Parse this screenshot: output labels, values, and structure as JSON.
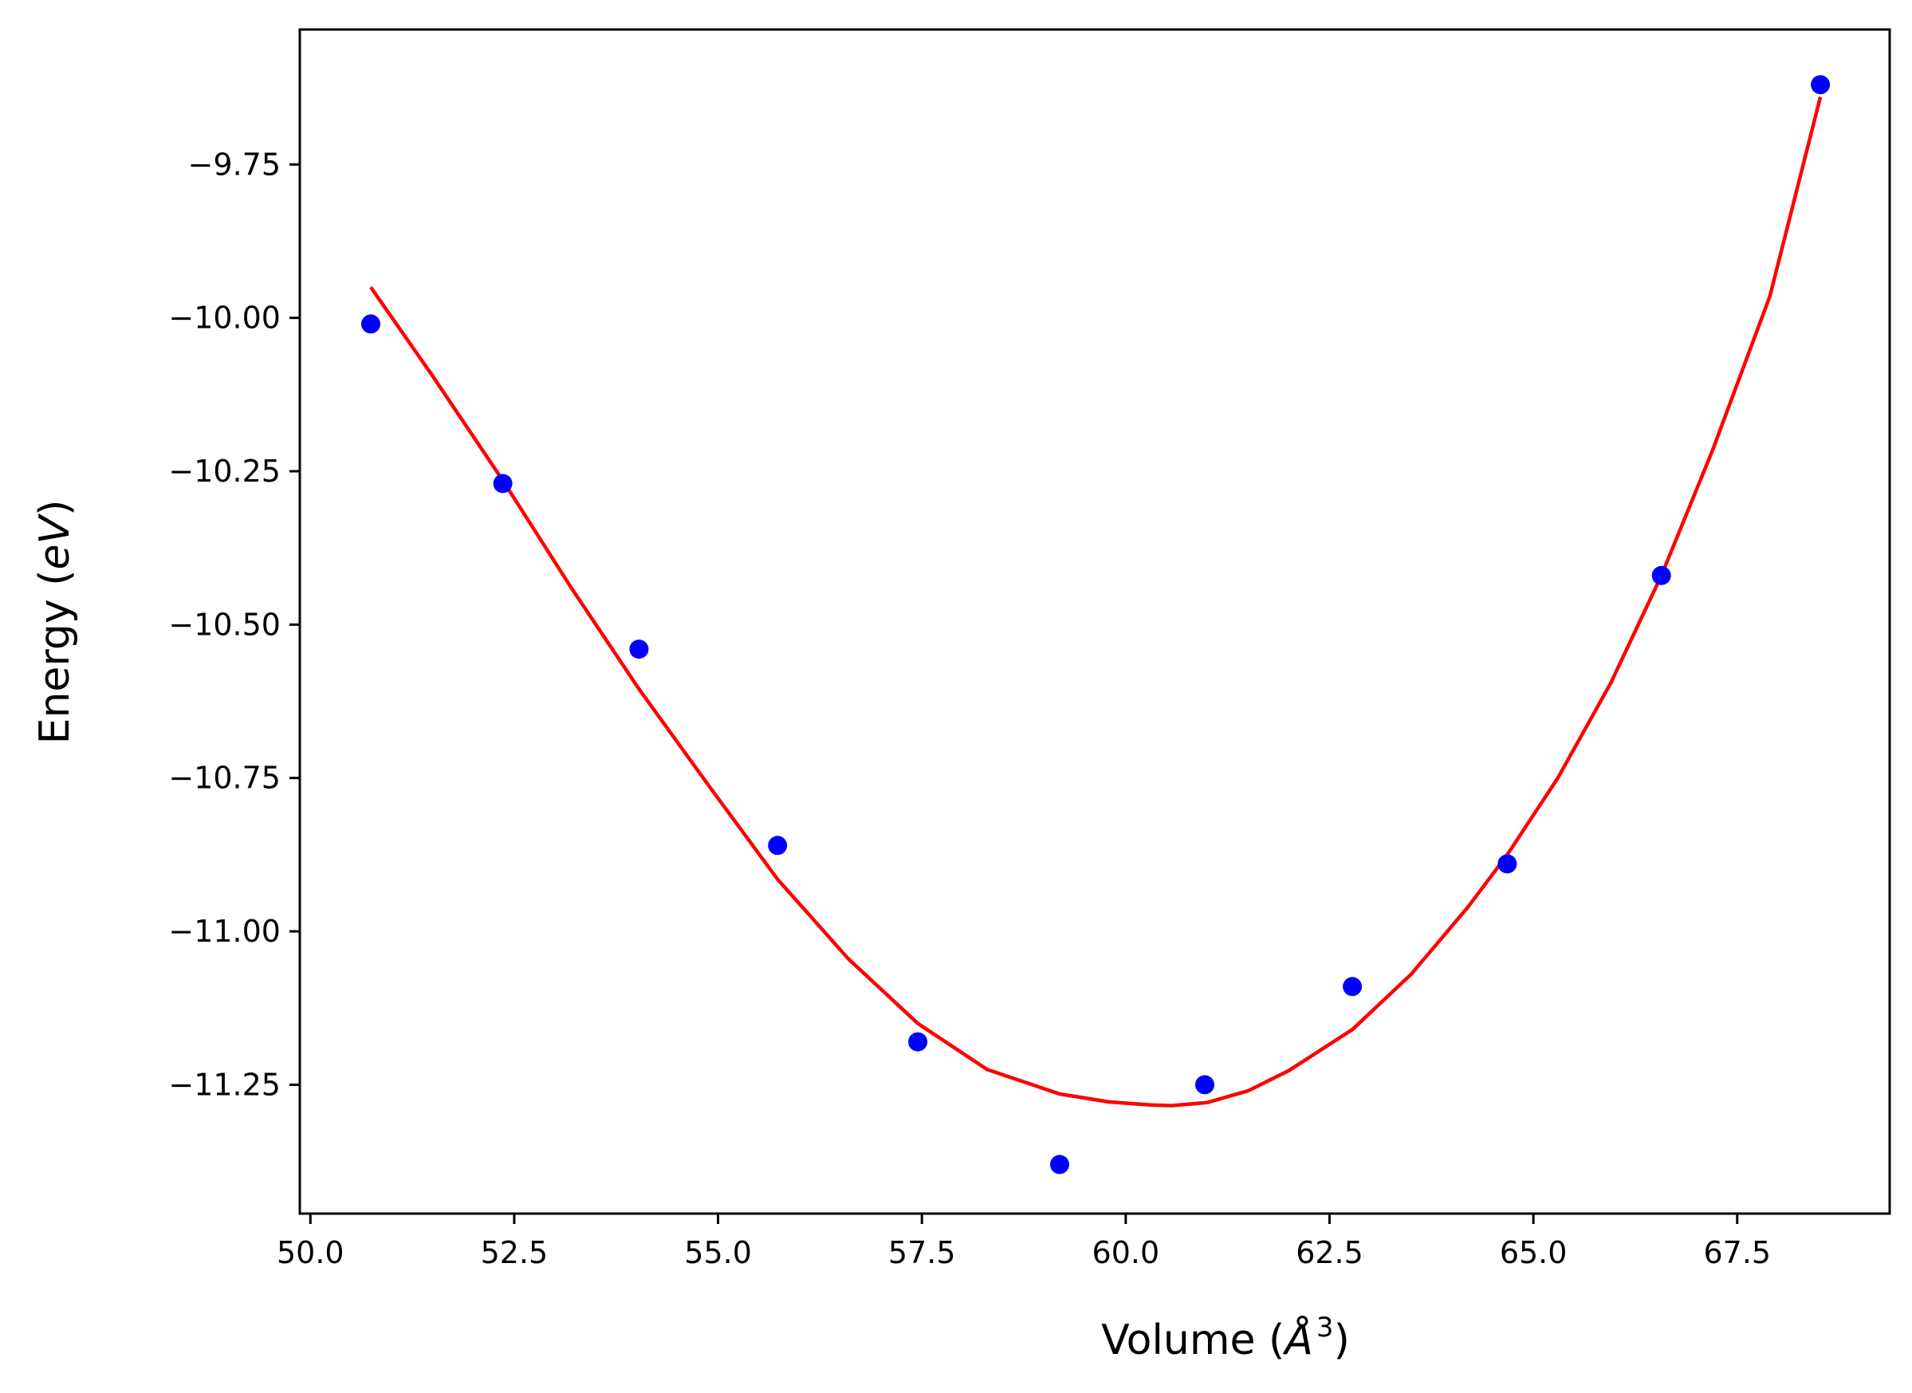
{
  "chart_data": {
    "type": "scatter",
    "title": "",
    "xlabel": {
      "prefix": "Volume (",
      "unit": "Å",
      "superscript": "3",
      "suffix": ")"
    },
    "ylabel": {
      "prefix": "Energy (",
      "unit": "eV",
      "suffix": ")"
    },
    "xlim": [
      49.87,
      69.37
    ],
    "ylim": [
      -11.46,
      -9.53
    ],
    "xticks": [
      {
        "value": 50.0,
        "label": "50.0"
      },
      {
        "value": 52.5,
        "label": "52.5"
      },
      {
        "value": 55.0,
        "label": "55.0"
      },
      {
        "value": 57.5,
        "label": "57.5"
      },
      {
        "value": 60.0,
        "label": "60.0"
      },
      {
        "value": 62.5,
        "label": "62.5"
      },
      {
        "value": 65.0,
        "label": "65.0"
      },
      {
        "value": 67.5,
        "label": "67.5"
      }
    ],
    "yticks": [
      {
        "value": -9.75,
        "label": "−9.75"
      },
      {
        "value": -10.0,
        "label": "−10.00"
      },
      {
        "value": -10.25,
        "label": "−10.25"
      },
      {
        "value": -10.5,
        "label": "−10.50"
      },
      {
        "value": -10.75,
        "label": "−10.75"
      },
      {
        "value": -11.0,
        "label": "−11.00"
      },
      {
        "value": -11.25,
        "label": "−11.25"
      }
    ],
    "grid": false,
    "legend": "none",
    "series": [
      {
        "kind": "scatter",
        "color": "#0000ff",
        "x": [
          50.74,
          52.36,
          54.03,
          55.73,
          57.45,
          59.19,
          60.97,
          62.78,
          64.68,
          66.57,
          68.52
        ],
        "y": [
          -10.01,
          -10.27,
          -10.54,
          -10.86,
          -11.18,
          -11.38,
          -11.25,
          -11.09,
          -10.89,
          -10.42,
          -9.62
        ]
      },
      {
        "kind": "line",
        "color": "#ff0000",
        "x": [
          50.74,
          51.5,
          52.36,
          53.2,
          54.03,
          54.9,
          55.73,
          56.6,
          57.45,
          58.3,
          59.19,
          59.8,
          60.3,
          60.56,
          61.0,
          61.5,
          62.0,
          62.78,
          63.5,
          64.2,
          64.68,
          65.3,
          65.95,
          66.57,
          67.2,
          67.9,
          68.52
        ],
        "y": [
          -9.95,
          -10.095,
          -10.265,
          -10.44,
          -10.605,
          -10.765,
          -10.915,
          -11.045,
          -11.15,
          -11.225,
          -11.265,
          -11.278,
          -11.283,
          -11.284,
          -11.279,
          -11.26,
          -11.227,
          -11.16,
          -11.07,
          -10.96,
          -10.875,
          -10.75,
          -10.595,
          -10.42,
          -10.215,
          -9.965,
          -9.64
        ]
      }
    ]
  }
}
